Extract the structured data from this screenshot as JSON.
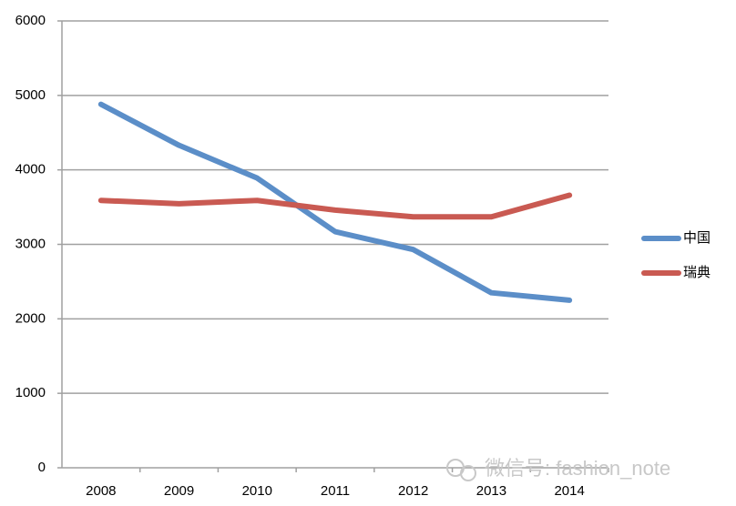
{
  "chart_data": {
    "type": "line",
    "categories": [
      "2008",
      "2009",
      "2010",
      "2011",
      "2012",
      "2013",
      "2014"
    ],
    "series": [
      {
        "name": "中国",
        "color": "#5b8ec8",
        "values": [
          4880,
          4330,
          3890,
          3170,
          2930,
          2350,
          2250
        ]
      },
      {
        "name": "瑞典",
        "color": "#c95a52",
        "values": [
          3590,
          3545,
          3590,
          3460,
          3370,
          3370,
          3660
        ]
      }
    ],
    "ylim": [
      0,
      6000
    ],
    "yticks": [
      0,
      1000,
      2000,
      3000,
      4000,
      5000,
      6000
    ],
    "grid": true,
    "legend": "right",
    "watermark": "微信号: fashion_note"
  }
}
